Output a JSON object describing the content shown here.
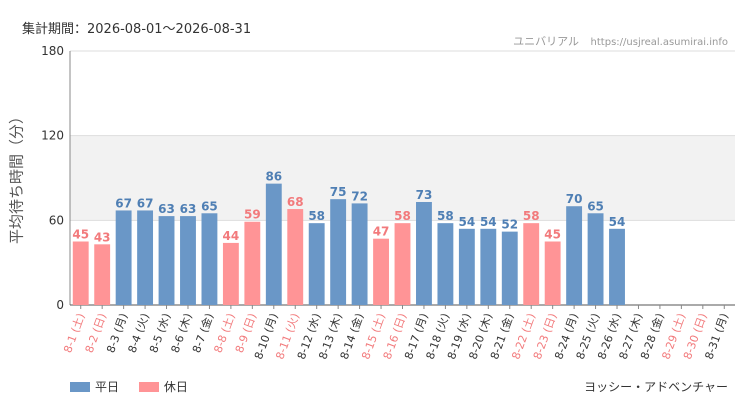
{
  "header": {
    "period": "集計期間：2026-08-01〜2026-08-31",
    "site_name": "ユニバリアル",
    "site_url": "https://usjreal.asumirai.info"
  },
  "footer": {
    "attraction": "ヨッシー・アドベンチャー"
  },
  "colors": {
    "weekday": "#6a97c7",
    "holiday": "#ff9496",
    "weekday_text": "#4f7fb4",
    "holiday_text": "#f27a7c"
  },
  "chart_data": {
    "type": "bar",
    "ylabel": "平均待ち時間（分）",
    "ylim": [
      0,
      180
    ],
    "yticks": [
      0,
      60,
      120,
      180
    ],
    "shaded_band": [
      60,
      120
    ],
    "grid": true,
    "legend_position": "bottom-left",
    "series": [
      {
        "name": "平日",
        "key": "weekday"
      },
      {
        "name": "休日",
        "key": "holiday"
      }
    ],
    "categories": [
      "8-1 (土)",
      "8-2 (日)",
      "8-3 (月)",
      "8-4 (火)",
      "8-5 (水)",
      "8-6 (木)",
      "8-7 (金)",
      "8-8 (土)",
      "8-9 (日)",
      "8-10 (月)",
      "8-11 (火)",
      "8-12 (水)",
      "8-13 (木)",
      "8-14 (金)",
      "8-15 (土)",
      "8-16 (日)",
      "8-17 (月)",
      "8-18 (火)",
      "8-19 (水)",
      "8-20 (木)",
      "8-21 (金)",
      "8-22 (土)",
      "8-23 (日)",
      "8-24 (月)",
      "8-25 (火)",
      "8-26 (水)",
      "8-27 (木)",
      "8-28 (金)",
      "8-29 (土)",
      "8-30 (日)",
      "8-31 (月)"
    ],
    "values": [
      45,
      43,
      67,
      67,
      63,
      63,
      65,
      44,
      59,
      86,
      68,
      58,
      75,
      72,
      47,
      58,
      73,
      58,
      54,
      54,
      52,
      58,
      45,
      70,
      65,
      54,
      null,
      null,
      null,
      null,
      null
    ],
    "day_type": [
      "holiday",
      "holiday",
      "weekday",
      "weekday",
      "weekday",
      "weekday",
      "weekday",
      "holiday",
      "holiday",
      "weekday",
      "holiday",
      "weekday",
      "weekday",
      "weekday",
      "holiday",
      "holiday",
      "weekday",
      "weekday",
      "weekday",
      "weekday",
      "weekday",
      "holiday",
      "holiday",
      "weekday",
      "weekday",
      "weekday",
      "weekday",
      "weekday",
      "holiday",
      "holiday",
      "weekday"
    ]
  }
}
